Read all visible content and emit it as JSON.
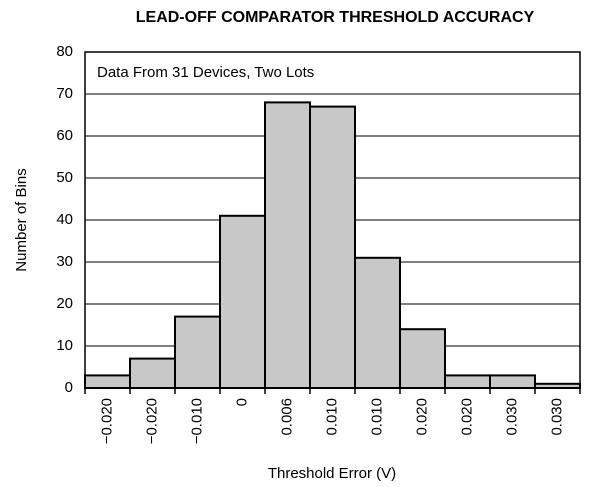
{
  "chart_data": {
    "type": "bar",
    "title": "LEAD-OFF COMPARATOR THRESHOLD ACCURACY",
    "annotation": "Data From 31 Devices, Two Lots",
    "xlabel": "Threshold Error (V)",
    "ylabel": "Number of Bins",
    "categories": [
      "−0.020",
      "−0.020",
      "−0.010",
      "0",
      "0.006",
      "0.010",
      "0.010",
      "0.020",
      "0.020",
      "0.030",
      "0.030"
    ],
    "values": [
      3,
      7,
      17,
      41,
      68,
      67,
      31,
      14,
      3,
      3,
      1
    ],
    "color": "#c8c8c8",
    "ylim": [
      0,
      80
    ],
    "yticks": [
      0,
      10,
      20,
      30,
      40,
      50,
      60,
      70,
      80
    ],
    "grid": true
  }
}
